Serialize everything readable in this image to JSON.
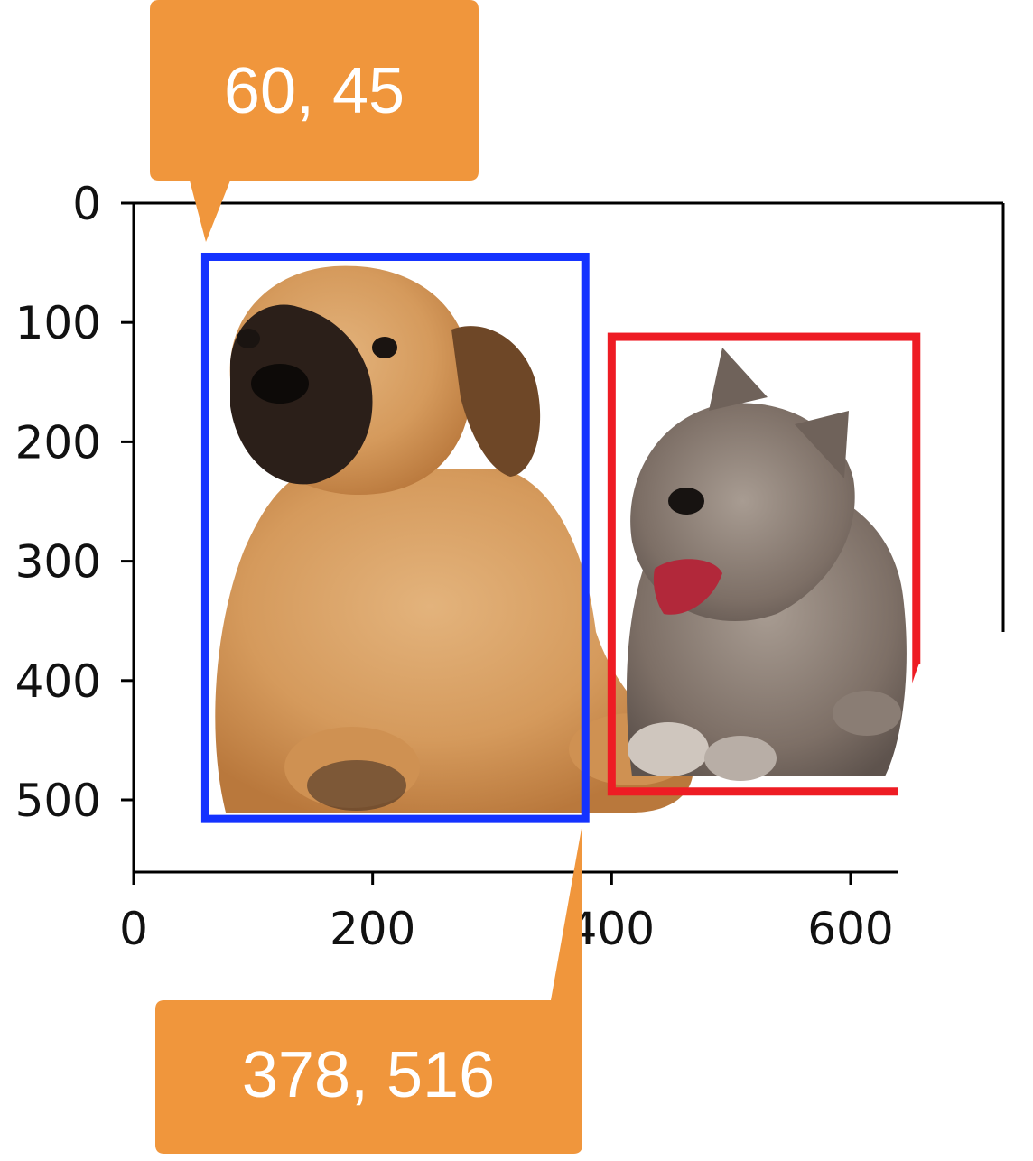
{
  "chart_data": {
    "type": "image-with-bounding-boxes",
    "image": {
      "subjects": [
        "dog",
        "cat"
      ],
      "background": "white"
    },
    "xlim": [
      0,
      640
    ],
    "ylim": [
      560,
      0
    ],
    "x_ticks": [
      "0",
      "200",
      "400",
      "600"
    ],
    "y_ticks": [
      "0",
      "100",
      "200",
      "300",
      "400",
      "500"
    ],
    "boxes": [
      {
        "label": "",
        "color": "#1432ff",
        "x_min": 60,
        "y_min": 45,
        "x_max": 378,
        "y_max": 516
      },
      {
        "label": "",
        "color": "#ee1c24",
        "x_min": 400,
        "y_min": 112,
        "x_max": 655,
        "y_max": 493
      }
    ],
    "callouts": [
      {
        "text": "60, 45",
        "color": "#f0963c",
        "points_to": [
          60,
          45
        ]
      },
      {
        "text": "378, 516",
        "color": "#f0963c",
        "points_to": [
          378,
          516
        ]
      }
    ]
  }
}
